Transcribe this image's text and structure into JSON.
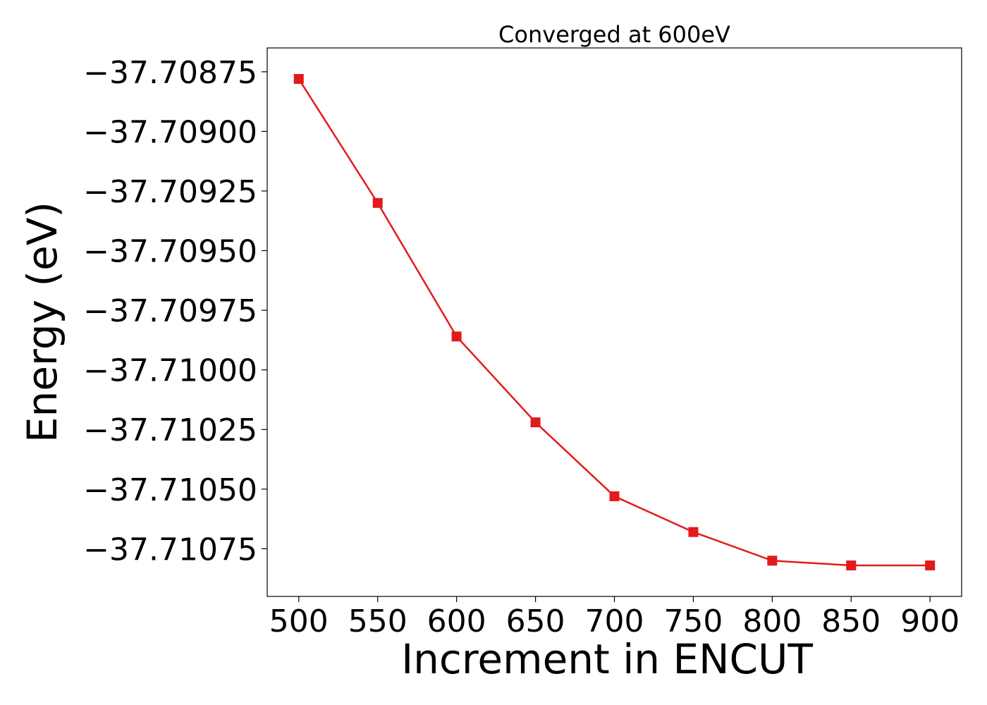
{
  "chart_data": {
    "type": "line",
    "title": "Converged at 600eV",
    "xlabel": "Increment in ENCUT",
    "ylabel": "Energy (eV)",
    "x": [
      500,
      550,
      600,
      650,
      700,
      750,
      800,
      850,
      900
    ],
    "series": [
      {
        "values": [
          -37.70878,
          -37.7093,
          -37.70986,
          -37.71022,
          -37.71053,
          -37.71068,
          -37.7108,
          -37.71082,
          -37.71082
        ],
        "color": "#e31a1c",
        "marker": "square"
      }
    ],
    "xlim": [
      480,
      920
    ],
    "ylim": [
      -37.71095,
      -37.70865
    ],
    "xticks": [
      500,
      550,
      600,
      650,
      700,
      750,
      800,
      850,
      900
    ],
    "xtick_labels": [
      "500",
      "550",
      "600",
      "650",
      "700",
      "750",
      "800",
      "850",
      "900"
    ],
    "yticks": [
      -37.70875,
      -37.709,
      -37.70925,
      -37.7095,
      -37.70975,
      -37.71,
      -37.71025,
      -37.7105,
      -37.71075
    ],
    "ytick_labels": [
      "−37.70875",
      "−37.70900",
      "−37.70925",
      "−37.70950",
      "−37.70975",
      "−37.71000",
      "−37.71025",
      "−37.71050",
      "−37.71075"
    ],
    "grid": false,
    "legend": "none"
  }
}
